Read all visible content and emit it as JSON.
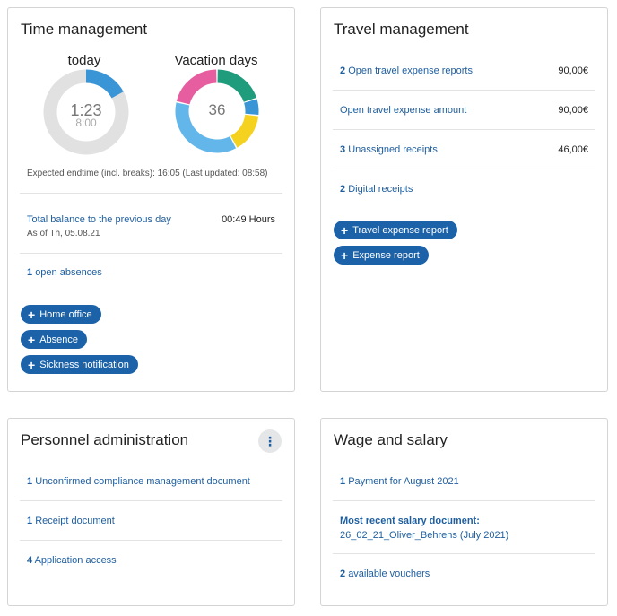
{
  "time": {
    "title": "Time management",
    "today_label": "today",
    "today_time": "1:23",
    "today_target": "8:00",
    "today_progress": 0.17,
    "vacation_label": "Vacation days",
    "vacation_value": "36",
    "expected_endtime": "Expected endtime (incl. breaks): 16:05 (Last updated: 08:58)",
    "balance_label": "Total balance to the previous day",
    "balance_value": "00:49 Hours",
    "balance_date": "As of Th, 05.08.21",
    "absences_count": "1",
    "absences_label": "open absences",
    "btn_home_office": "Home office",
    "btn_absence": "Absence",
    "btn_sickness": "Sickness notification",
    "colors": {
      "progress": "#3a95d6",
      "track": "#e1e1e1",
      "slices": [
        "#1e9c7c",
        "#3a95d6",
        "#f4d21f",
        "#63b6ea",
        "#e75ea0"
      ]
    }
  },
  "travel": {
    "title": "Travel management",
    "rows": [
      {
        "count": "2",
        "label": "Open travel expense reports",
        "amount": "90,00€"
      },
      {
        "count": "",
        "label": "Open travel expense amount",
        "amount": "90,00€"
      },
      {
        "count": "3",
        "label": "Unassigned receipts",
        "amount": "46,00€"
      },
      {
        "count": "2",
        "label": "Digital receipts",
        "amount": ""
      }
    ],
    "btn_travel_report": "Travel expense report",
    "btn_expense_report": "Expense report"
  },
  "personnel": {
    "title": "Personnel administration",
    "rows": [
      {
        "count": "1",
        "label": "Unconfirmed compliance management document"
      },
      {
        "count": "1",
        "label": "Receipt document"
      },
      {
        "count": "4",
        "label": "Application access"
      }
    ],
    "menu_glyph": "⋮"
  },
  "wage": {
    "title": "Wage and salary",
    "payment_count": "1",
    "payment_label": "Payment for August 2021",
    "salary_heading": "Most recent salary document:",
    "salary_doc": "26_02_21_Oliver_Behrens (July 2021)",
    "vouchers_count": "2",
    "vouchers_label": "available vouchers"
  }
}
